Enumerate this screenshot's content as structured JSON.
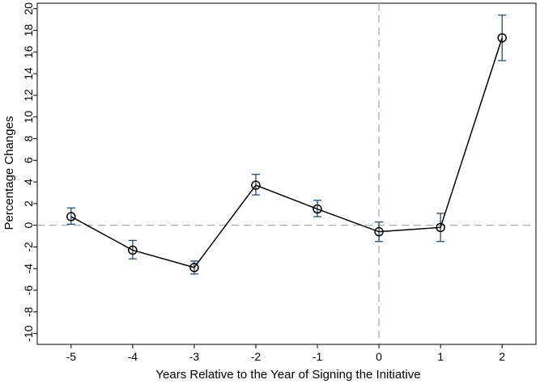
{
  "chart_data": {
    "type": "line",
    "xlabel": "Years Relative to the Year of Signing the Initiative",
    "ylabel": "Percentage Changes",
    "x": [
      -5,
      -4,
      -3,
      -2,
      -1,
      0,
      1,
      2
    ],
    "series": [
      {
        "values": [
          0.8,
          -2.3,
          -3.9,
          3.7,
          1.5,
          -0.6,
          -0.2,
          17.3
        ],
        "ci_lower": [
          0.1,
          -3.1,
          -4.5,
          2.8,
          0.8,
          -1.5,
          -1.5,
          15.2
        ],
        "ci_upper": [
          1.6,
          -1.4,
          -3.3,
          4.7,
          2.3,
          0.3,
          1.1,
          19.4
        ]
      }
    ],
    "xlim": [
      -5.55,
      2.55
    ],
    "ylim": [
      -11,
      20.5
    ],
    "x_ticks": [
      "-5",
      "-4",
      "-3",
      "-2",
      "-1",
      "0",
      "1",
      "2"
    ],
    "y_ticks": [
      "20",
      "18",
      "16",
      "14",
      "12",
      "10",
      "8",
      "6",
      "4",
      "2",
      "0",
      "-2",
      "-4",
      "-6",
      "-8",
      "-10"
    ],
    "reference_lines": {
      "horizontal": 0,
      "vertical": 0
    },
    "grid": false,
    "colors": {
      "line": "#000000",
      "error_bar": "#1f4e79",
      "reference_line": "#9fb0b0"
    }
  }
}
